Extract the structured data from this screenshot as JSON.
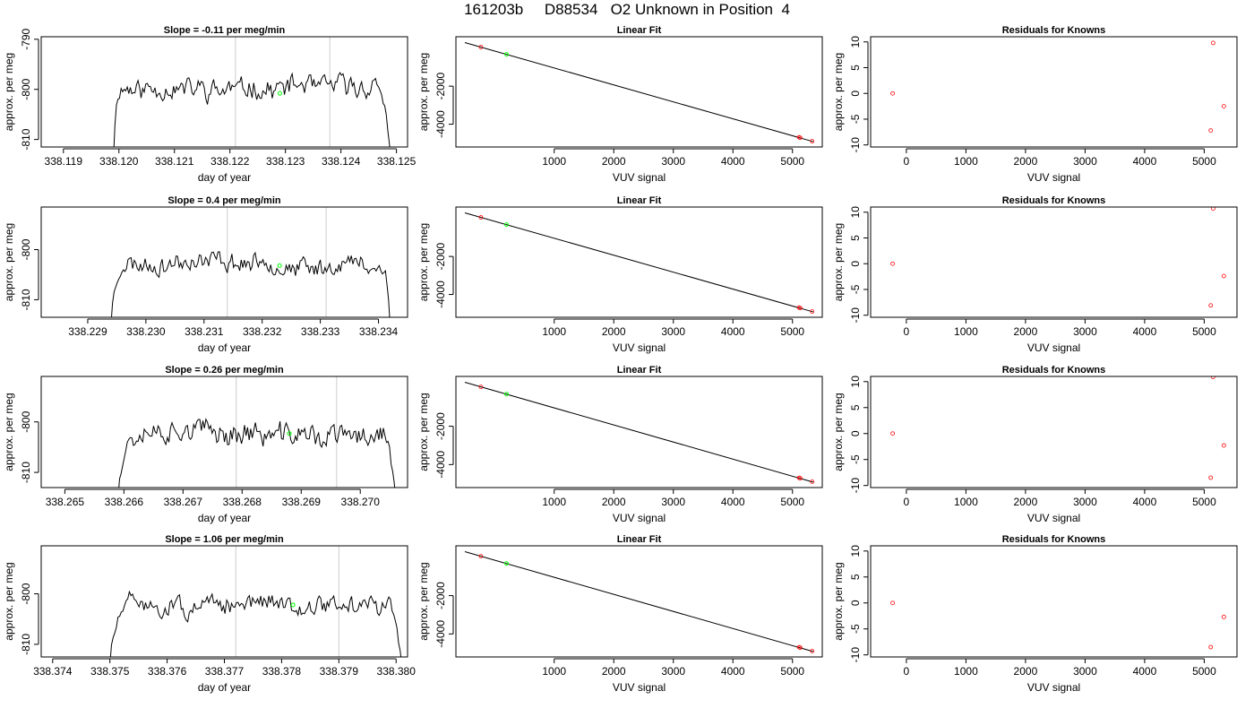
{
  "title": "161203b     D88534   O2 Unknown in Position  4",
  "colors": {
    "trace": "#000000",
    "vline": "#cccccc",
    "fit_point": "#00ff00",
    "known_point": "#ff0000",
    "axis": "#000000"
  },
  "chart_data": [
    {
      "type": "line",
      "row": 0,
      "col": 0,
      "title": "Slope =  -0.11  per meg/min",
      "xlabel": "day of year",
      "ylabel": "approx. per meg",
      "xlim": [
        338.1186,
        338.1252
      ],
      "ylim": [
        -811.5,
        -789.5
      ],
      "xticks": [
        338.119,
        338.12,
        338.121,
        338.122,
        338.123,
        338.124,
        338.125
      ],
      "xtick_labels": [
        "338.119",
        "338.120",
        "338.121",
        "338.122",
        "338.123",
        "338.124",
        "338.125"
      ],
      "yticks": [
        -790,
        -800,
        -810
      ],
      "ytick_labels": [
        "-790",
        "-800",
        "-810"
      ],
      "vlines": [
        338.1221,
        338.1238
      ],
      "trace": {
        "x_start": 338.1199,
        "x_end": 338.1249,
        "start": -814,
        "rise_end": 338.12,
        "plateau": -799.5,
        "fall_start": 338.1247,
        "end": -814,
        "amp": 1.8,
        "seed": 11
      },
      "fit_point": {
        "x": 338.1229,
        "y": -800.8
      }
    },
    {
      "type": "line",
      "row": 1,
      "col": 0,
      "title": "Slope =  0.4  per meg/min",
      "xlabel": "day of year",
      "ylabel": "approx. per meg",
      "xlim": [
        338.2282,
        338.2345
      ],
      "ylim": [
        -813.5,
        -791.5
      ],
      "xticks": [
        338.229,
        338.23,
        338.231,
        338.232,
        338.233,
        338.234
      ],
      "xtick_labels": [
        "338.229",
        "338.230",
        "338.231",
        "338.232",
        "338.233",
        "338.234"
      ],
      "yticks": [
        -800,
        -810
      ],
      "ytick_labels": [
        "-800",
        "-810"
      ],
      "vlines": [
        338.2314,
        338.2331
      ],
      "trace": {
        "x_start": 338.2294,
        "x_end": 338.2342,
        "start": -815,
        "rise_end": 338.2296,
        "plateau": -803,
        "fall_start": 338.2341,
        "end": -815,
        "amp": 1.6,
        "seed": 23
      },
      "fit_point": {
        "x": 338.2323,
        "y": -803.2
      }
    },
    {
      "type": "line",
      "row": 2,
      "col": 0,
      "title": "Slope =  0.26  per meg/min",
      "xlabel": "day of year",
      "ylabel": "approx. per meg",
      "xlim": [
        338.2646,
        338.2708
      ],
      "ylim": [
        -813,
        -791
      ],
      "xticks": [
        338.265,
        338.266,
        338.267,
        338.268,
        338.269,
        338.27
      ],
      "xtick_labels": [
        "338.265",
        "338.266",
        "338.267",
        "338.268",
        "338.269",
        "338.270"
      ],
      "yticks": [
        -800,
        -810
      ],
      "ytick_labels": [
        "-800",
        "-810"
      ],
      "vlines": [
        338.2679,
        338.2696
      ],
      "trace": {
        "x_start": 338.2659,
        "x_end": 338.2706,
        "start": -815,
        "rise_end": 338.2661,
        "plateau": -802.5,
        "fall_start": 338.2704,
        "end": -815,
        "amp": 2.0,
        "seed": 37
      },
      "fit_point": {
        "x": 338.2688,
        "y": -802.3
      }
    },
    {
      "type": "line",
      "row": 3,
      "col": 0,
      "title": "Slope =  1.06  per meg/min",
      "xlabel": "day of year",
      "ylabel": "approx. per meg",
      "xlim": [
        338.3738,
        338.3802
      ],
      "ylim": [
        -812.5,
        -790.5
      ],
      "xticks": [
        338.374,
        338.375,
        338.376,
        338.377,
        338.378,
        338.379,
        338.38
      ],
      "xtick_labels": [
        "338.374",
        "338.375",
        "338.376",
        "338.377",
        "338.378",
        "338.379",
        "338.380"
      ],
      "yticks": [
        -800,
        -810
      ],
      "ytick_labels": [
        "-800",
        "-810"
      ],
      "vlines": [
        338.3772,
        338.379
      ],
      "trace": {
        "x_start": 338.375,
        "x_end": 338.3801,
        "start": -814,
        "rise_end": 338.3753,
        "plateau": -802,
        "fall_start": 338.3799,
        "end": -814,
        "amp": 1.6,
        "seed": 51
      },
      "fit_point": {
        "x": 338.3782,
        "y": -802.2
      }
    },
    {
      "type": "scatter",
      "row": 0,
      "col": 1,
      "title": "Linear Fit",
      "xlabel": "VUV signal",
      "ylabel": "approx. per meg",
      "xlim": [
        -650,
        5500
      ],
      "ylim": [
        -5200,
        600
      ],
      "xticks": [
        1000,
        2000,
        3000,
        4000,
        5000
      ],
      "xtick_labels": [
        "1000",
        "2000",
        "3000",
        "4000",
        "5000"
      ],
      "yticks": [
        -2000,
        -4000
      ],
      "ytick_labels": [
        "-2000",
        "-4000"
      ],
      "line": {
        "x": [
          -500,
          5350
        ],
        "y": [
          295,
          -4920
        ]
      },
      "known_points": [
        {
          "x": -230,
          "y": 55
        },
        {
          "x": 5110,
          "y": -4690
        },
        {
          "x": 5130,
          "y": -4715
        },
        {
          "x": 5330,
          "y": -4895
        }
      ],
      "fit_points": [
        {
          "x": 200,
          "y": -325
        }
      ]
    },
    {
      "type": "scatter",
      "row": 1,
      "col": 1,
      "title": "Linear Fit",
      "xlabel": "VUV signal",
      "ylabel": "approx. per meg",
      "xlim": [
        -650,
        5500
      ],
      "ylim": [
        -5200,
        600
      ],
      "xticks": [
        1000,
        2000,
        3000,
        4000,
        5000
      ],
      "xtick_labels": [
        "1000",
        "2000",
        "3000",
        "4000",
        "5000"
      ],
      "yticks": [
        -2000,
        -4000
      ],
      "ytick_labels": [
        "-2000",
        "-4000"
      ],
      "line": {
        "x": [
          -500,
          5350
        ],
        "y": [
          295,
          -4920
        ]
      },
      "known_points": [
        {
          "x": -230,
          "y": 55
        },
        {
          "x": 5110,
          "y": -4690
        },
        {
          "x": 5130,
          "y": -4715
        },
        {
          "x": 5330,
          "y": -4895
        }
      ],
      "fit_points": [
        {
          "x": 200,
          "y": -325
        }
      ]
    },
    {
      "type": "scatter",
      "row": 2,
      "col": 1,
      "title": "Linear Fit",
      "xlabel": "VUV signal",
      "ylabel": "approx. per meg",
      "xlim": [
        -650,
        5500
      ],
      "ylim": [
        -5200,
        600
      ],
      "xticks": [
        1000,
        2000,
        3000,
        4000,
        5000
      ],
      "xtick_labels": [
        "1000",
        "2000",
        "3000",
        "4000",
        "5000"
      ],
      "yticks": [
        -2000,
        -4000
      ],
      "ytick_labels": [
        "-2000",
        "-4000"
      ],
      "line": {
        "x": [
          -500,
          5350
        ],
        "y": [
          295,
          -4920
        ]
      },
      "known_points": [
        {
          "x": -230,
          "y": 55
        },
        {
          "x": 5110,
          "y": -4690
        },
        {
          "x": 5130,
          "y": -4715
        },
        {
          "x": 5330,
          "y": -4895
        }
      ],
      "fit_points": [
        {
          "x": 200,
          "y": -325
        }
      ]
    },
    {
      "type": "scatter",
      "row": 3,
      "col": 1,
      "title": "Linear Fit",
      "xlabel": "VUV signal",
      "ylabel": "approx. per meg",
      "xlim": [
        -650,
        5500
      ],
      "ylim": [
        -5200,
        600
      ],
      "xticks": [
        1000,
        2000,
        3000,
        4000,
        5000
      ],
      "xtick_labels": [
        "1000",
        "2000",
        "3000",
        "4000",
        "5000"
      ],
      "yticks": [
        -2000,
        -4000
      ],
      "ytick_labels": [
        "-2000",
        "-4000"
      ],
      "line": {
        "x": [
          -500,
          5350
        ],
        "y": [
          295,
          -4920
        ]
      },
      "known_points": [
        {
          "x": -230,
          "y": 55
        },
        {
          "x": 5110,
          "y": -4690
        },
        {
          "x": 5130,
          "y": -4715
        },
        {
          "x": 5330,
          "y": -4895
        }
      ],
      "fit_points": [
        {
          "x": 200,
          "y": -325
        }
      ]
    },
    {
      "type": "scatter",
      "row": 0,
      "col": 2,
      "title": "Residuals for Knowns",
      "xlabel": "VUV signal",
      "ylabel": "approx. per meg",
      "xlim": [
        -600,
        5550
      ],
      "ylim": [
        -10.4,
        11
      ],
      "xticks": [
        0,
        1000,
        2000,
        3000,
        4000,
        5000
      ],
      "xtick_labels": [
        "0",
        "1000",
        "2000",
        "3000",
        "4000",
        "5000"
      ],
      "yticks": [
        10,
        5,
        0,
        -5,
        -10
      ],
      "ytick_labels": [
        "10",
        "5",
        "0",
        "-5",
        "-10"
      ],
      "known_points": [
        {
          "x": -230,
          "y": 0
        },
        {
          "x": 5150,
          "y": 9.8
        },
        {
          "x": 5110,
          "y": -7.2
        },
        {
          "x": 5330,
          "y": -2.5
        }
      ]
    },
    {
      "type": "scatter",
      "row": 1,
      "col": 2,
      "title": "Residuals for Knowns",
      "xlabel": "VUV signal",
      "ylabel": "approx. per meg",
      "xlim": [
        -600,
        5550
      ],
      "ylim": [
        -10.4,
        11
      ],
      "xticks": [
        0,
        1000,
        2000,
        3000,
        4000,
        5000
      ],
      "xtick_labels": [
        "0",
        "1000",
        "2000",
        "3000",
        "4000",
        "5000"
      ],
      "yticks": [
        10,
        5,
        0,
        -5,
        -10
      ],
      "ytick_labels": [
        "10",
        "5",
        "0",
        "-5",
        "-10"
      ],
      "known_points": [
        {
          "x": -230,
          "y": 0
        },
        {
          "x": 5150,
          "y": 10.7
        },
        {
          "x": 5110,
          "y": -8.1
        },
        {
          "x": 5330,
          "y": -2.4
        }
      ]
    },
    {
      "type": "scatter",
      "row": 2,
      "col": 2,
      "title": "Residuals for Knowns",
      "xlabel": "VUV signal",
      "ylabel": "approx. per meg",
      "xlim": [
        -600,
        5550
      ],
      "ylim": [
        -10.4,
        11
      ],
      "xticks": [
        0,
        1000,
        2000,
        3000,
        4000,
        5000
      ],
      "xtick_labels": [
        "0",
        "1000",
        "2000",
        "3000",
        "4000",
        "5000"
      ],
      "yticks": [
        10,
        5,
        0,
        -5,
        -10
      ],
      "ytick_labels": [
        "10",
        "5",
        "0",
        "-5",
        "-10"
      ],
      "known_points": [
        {
          "x": -230,
          "y": 0
        },
        {
          "x": 5150,
          "y": 10.9
        },
        {
          "x": 5110,
          "y": -8.5
        },
        {
          "x": 5330,
          "y": -2.3
        }
      ]
    },
    {
      "type": "scatter",
      "row": 3,
      "col": 2,
      "title": "Residuals for Knowns",
      "xlabel": "VUV signal",
      "ylabel": "approx. per meg",
      "xlim": [
        -600,
        5550
      ],
      "ylim": [
        -10.4,
        11
      ],
      "xticks": [
        0,
        1000,
        2000,
        3000,
        4000,
        5000
      ],
      "xtick_labels": [
        "0",
        "1000",
        "2000",
        "3000",
        "4000",
        "5000"
      ],
      "yticks": [
        10,
        5,
        0,
        -5,
        -10
      ],
      "ytick_labels": [
        "10",
        "5",
        "0",
        "-5",
        "-10"
      ],
      "known_points": [
        {
          "x": -230,
          "y": 0
        },
        {
          "x": 5110,
          "y": -8.5
        },
        {
          "x": 5330,
          "y": -2.7
        }
      ]
    }
  ]
}
